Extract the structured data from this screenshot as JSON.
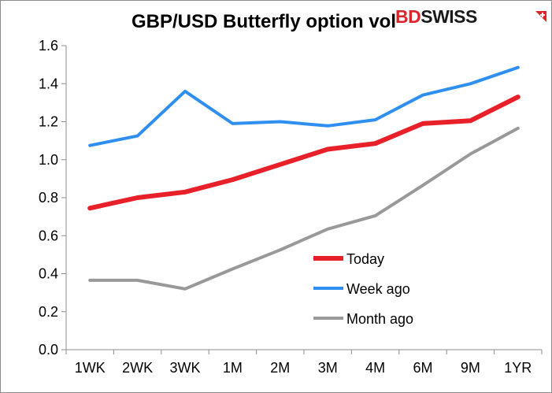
{
  "brand": {
    "prefix": "BD",
    "suffix": "SWISS",
    "colors": {
      "prefix": "#d9262c",
      "suffix": "#1a1a1a"
    }
  },
  "chart_data": {
    "type": "line",
    "title": "GBP/USD Butterfly option vol",
    "xlabel": "",
    "ylabel": "",
    "categories": [
      "1WK",
      "2WK",
      "3WK",
      "1M",
      "2M",
      "3M",
      "4M",
      "6M",
      "9M",
      "1YR"
    ],
    "ylim": [
      0.0,
      1.6
    ],
    "yticks": [
      "0.0",
      "0.2",
      "0.4",
      "0.6",
      "0.8",
      "1.0",
      "1.2",
      "1.4",
      "1.6"
    ],
    "grid": false,
    "legend_position": "bottom-right",
    "series": [
      {
        "name": "Today",
        "color": "#e8202a",
        "values": [
          0.745,
          0.8,
          0.83,
          0.895,
          0.975,
          1.055,
          1.085,
          1.19,
          1.205,
          1.33
        ]
      },
      {
        "name": "Week ago",
        "color": "#2f8ff0",
        "values": [
          1.075,
          1.125,
          1.36,
          1.19,
          1.2,
          1.178,
          1.21,
          1.34,
          1.4,
          1.485
        ]
      },
      {
        "name": "Month ago",
        "color": "#999999",
        "values": [
          0.365,
          0.365,
          0.32,
          0.425,
          0.525,
          0.635,
          0.705,
          0.865,
          1.03,
          1.165
        ]
      }
    ]
  }
}
